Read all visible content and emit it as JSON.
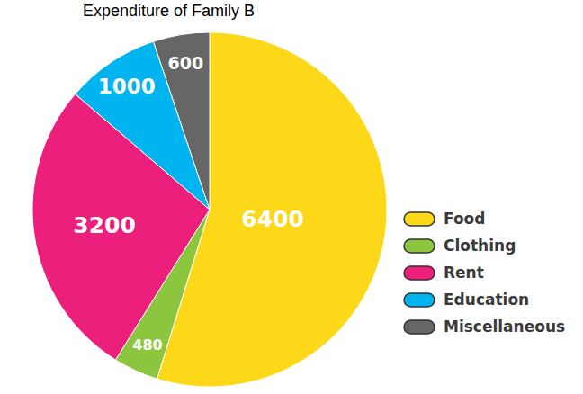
{
  "chart_data": {
    "type": "pie",
    "title": "Expenditure of Family B",
    "categories": [
      "Food",
      "Clothing",
      "Rent",
      "Education",
      "Miscellaneous"
    ],
    "values": [
      6400,
      480,
      3200,
      1000,
      600
    ],
    "colors": [
      "#FDD819",
      "#8CC63F",
      "#EC1F7D",
      "#00B4EF",
      "#666666"
    ],
    "data_labels": true,
    "legend": "right"
  }
}
